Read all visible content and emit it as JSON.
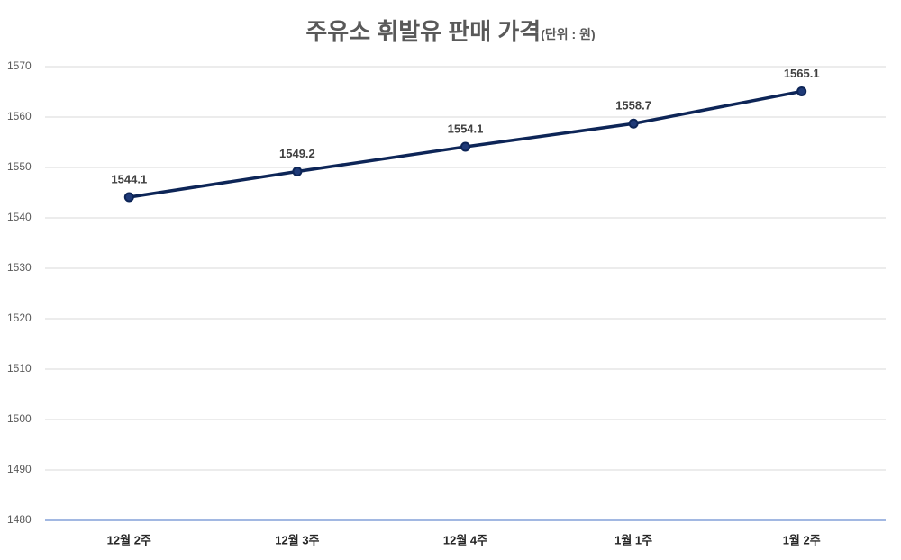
{
  "chart_data": {
    "type": "line",
    "title": "주유소 휘발유 판매 가격",
    "subtitle": "(단위 : 원)",
    "categories": [
      "12월 2주",
      "12월 3주",
      "12월 4주",
      "1월 1주",
      "1월 2주"
    ],
    "series": [
      {
        "name": "휘발유",
        "color": "#0d2557",
        "values": [
          1544.1,
          1549.2,
          1554.1,
          1558.7,
          1565.1
        ]
      }
    ],
    "ylim": [
      1480,
      1570
    ],
    "yticks": [
      1480,
      1490,
      1500,
      1510,
      1520,
      1530,
      1540,
      1550,
      1560,
      1570
    ],
    "grid": true,
    "data_labels": true
  }
}
